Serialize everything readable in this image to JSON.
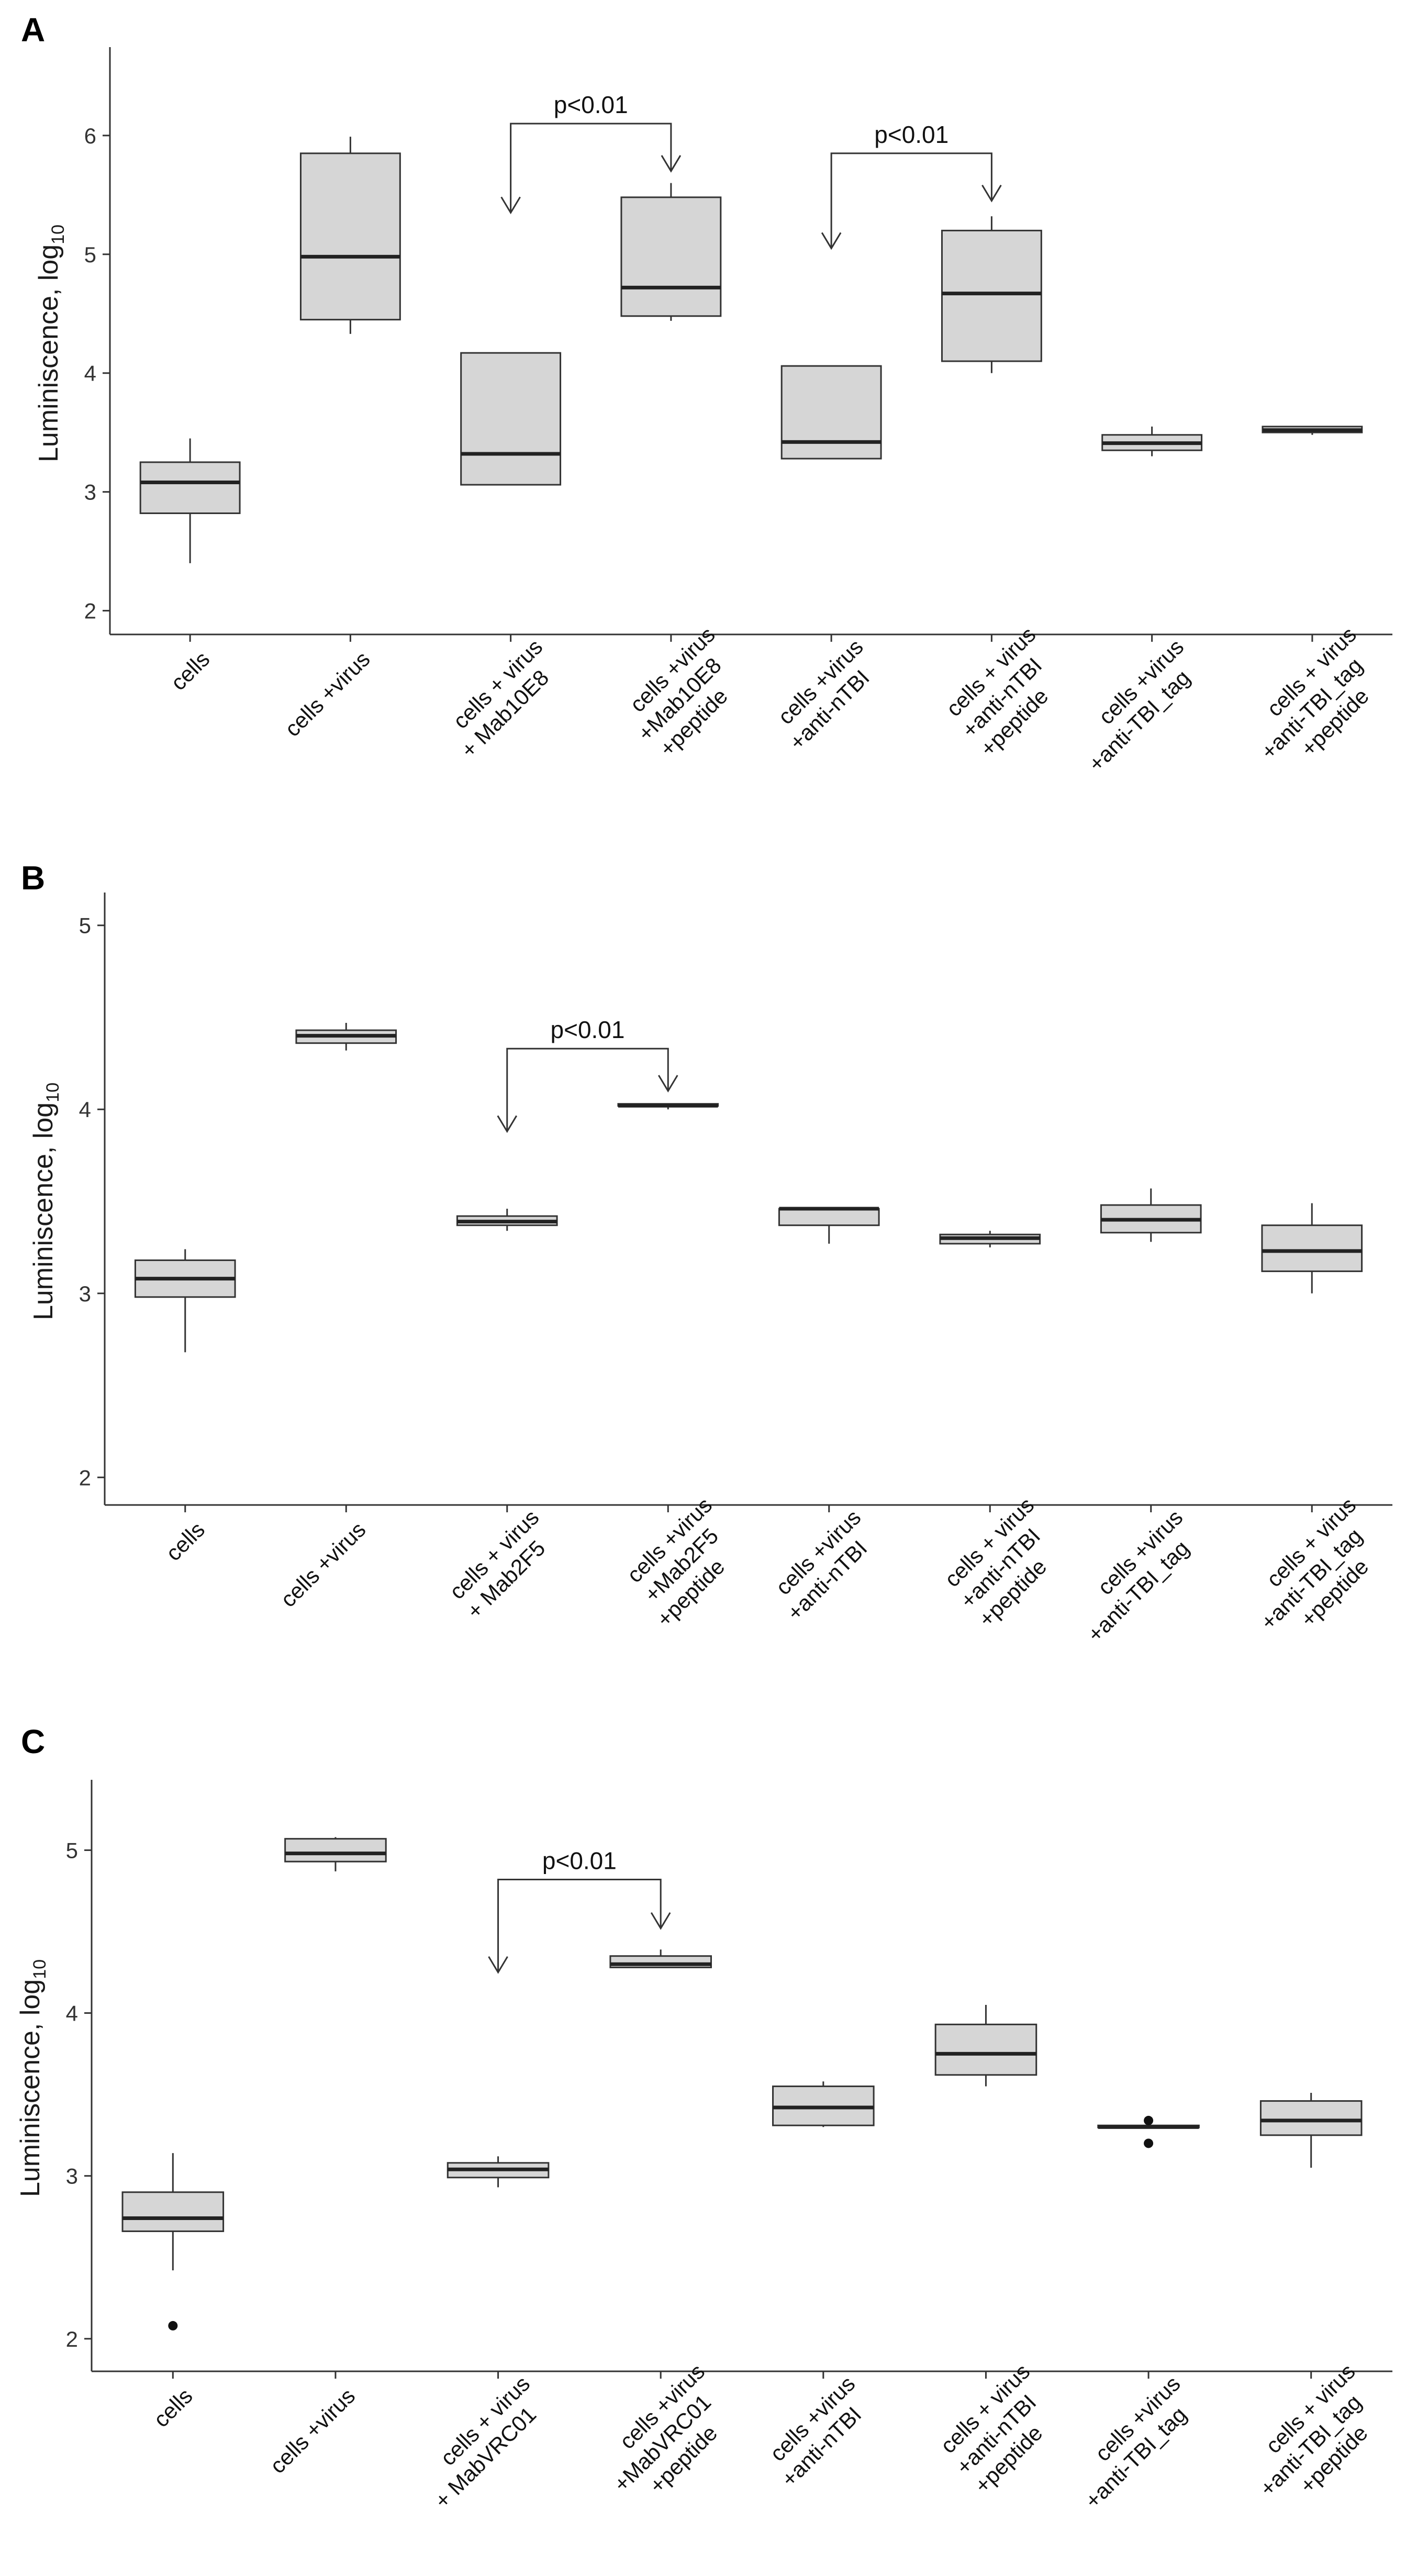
{
  "chart_data": [
    {
      "panel": "A",
      "type": "box",
      "ylabel_main": "Luminiscence, log",
      "ylabel_sub": "10",
      "ylim": [
        1.8,
        6.7
      ],
      "yticks": [
        2,
        3,
        4,
        5,
        6
      ],
      "categories": [
        [
          "cells"
        ],
        [
          "cells +virus"
        ],
        [
          "cells + virus",
          "+ Mab10E8"
        ],
        [
          "cells +virus",
          "+Mab10E8",
          "+peptide"
        ],
        [
          "cells +virus",
          "+anti-nTBI"
        ],
        [
          "cells + virus",
          "+anti-nTBI",
          "+peptide"
        ],
        [
          "cells +virus",
          "+anti-TBI_tag"
        ],
        [
          "cells + virus",
          "+anti-TBI_tag",
          "+peptide"
        ]
      ],
      "boxes": [
        {
          "min": 2.4,
          "q1": 2.82,
          "median": 3.08,
          "q3": 3.25,
          "max": 3.45
        },
        {
          "min": 4.33,
          "q1": 4.45,
          "median": 4.98,
          "q3": 5.85,
          "max": 5.99
        },
        {
          "min": 3.06,
          "q1": 3.06,
          "median": 3.32,
          "q3": 4.17,
          "max": 4.17
        },
        {
          "min": 4.44,
          "q1": 4.48,
          "median": 4.72,
          "q3": 5.48,
          "max": 5.6
        },
        {
          "min": 3.28,
          "q1": 3.28,
          "median": 3.42,
          "q3": 4.06,
          "max": 4.06
        },
        {
          "min": 4.0,
          "q1": 4.1,
          "median": 4.67,
          "q3": 5.2,
          "max": 5.32
        },
        {
          "min": 3.3,
          "q1": 3.35,
          "median": 3.41,
          "q3": 3.48,
          "max": 3.55
        },
        {
          "min": 3.48,
          "q1": 3.5,
          "median": 3.52,
          "q3": 3.55,
          "max": 3.55
        }
      ],
      "outliers": [],
      "annotations": [
        {
          "text": "p<0.01",
          "from": 2,
          "to": 3,
          "left_arrow_y": 5.35,
          "right_arrow_y": 5.7,
          "top_y": 6.1
        },
        {
          "text": "p<0.01",
          "from": 4,
          "to": 5,
          "left_arrow_y": 5.05,
          "right_arrow_y": 5.45,
          "top_y": 5.85
        }
      ]
    },
    {
      "panel": "B",
      "type": "box",
      "ylabel_main": "Luminiscence, log",
      "ylabel_sub": "10",
      "ylim": [
        1.85,
        5.15
      ],
      "yticks": [
        2,
        3,
        4,
        5
      ],
      "categories": [
        [
          "cells"
        ],
        [
          "cells +virus"
        ],
        [
          "cells + virus",
          "+ Mab2F5"
        ],
        [
          "cells +virus",
          "+Mab2F5",
          "+peptide"
        ],
        [
          "cells +virus",
          "+anti-nTBI"
        ],
        [
          "cells + virus",
          "+anti-nTBI",
          "+peptide"
        ],
        [
          "cells +virus",
          "+anti-TBI_tag"
        ],
        [
          "cells + virus",
          "+anti-TBI_tag",
          "+peptide"
        ]
      ],
      "boxes": [
        {
          "min": 2.68,
          "q1": 2.98,
          "median": 3.08,
          "q3": 3.18,
          "max": 3.24
        },
        {
          "min": 4.32,
          "q1": 4.36,
          "median": 4.4,
          "q3": 4.43,
          "max": 4.47
        },
        {
          "min": 3.34,
          "q1": 3.37,
          "median": 3.39,
          "q3": 3.42,
          "max": 3.46
        },
        {
          "min": 4.0,
          "q1": 4.02,
          "median": 4.02,
          "q3": 4.03,
          "max": 4.03
        },
        {
          "min": 3.27,
          "q1": 3.37,
          "median": 3.46,
          "q3": 3.46,
          "max": 3.46
        },
        {
          "min": 3.25,
          "q1": 3.27,
          "median": 3.3,
          "q3": 3.32,
          "max": 3.34
        },
        {
          "min": 3.28,
          "q1": 3.33,
          "median": 3.4,
          "q3": 3.48,
          "max": 3.57
        },
        {
          "min": 3.0,
          "q1": 3.12,
          "median": 3.23,
          "q3": 3.37,
          "max": 3.49
        }
      ],
      "outliers": [],
      "annotations": [
        {
          "text": "p<0.01",
          "from": 2,
          "to": 3,
          "left_arrow_y": 3.88,
          "right_arrow_y": 4.1,
          "top_y": 4.33
        }
      ]
    },
    {
      "panel": "C",
      "type": "box",
      "ylabel_main": "Luminiscence, log",
      "ylabel_sub": "10",
      "ylim": [
        1.8,
        5.4
      ],
      "yticks": [
        2,
        3,
        4,
        5
      ],
      "categories": [
        [
          "cells"
        ],
        [
          "cells +virus"
        ],
        [
          "cells + virus",
          "+ MabVRC01"
        ],
        [
          "cells +virus",
          "+MabVRC01",
          "+peptide"
        ],
        [
          "cells +virus",
          "+anti-nTBI"
        ],
        [
          "cells + virus",
          "+anti-nTBI",
          "+peptide"
        ],
        [
          "cells +virus",
          "+anti-TBI_tag"
        ],
        [
          "cells + virus",
          "+anti-TBI_tag",
          "+peptide"
        ]
      ],
      "boxes": [
        {
          "min": 2.42,
          "q1": 2.66,
          "median": 2.74,
          "q3": 2.9,
          "max": 3.14
        },
        {
          "min": 4.87,
          "q1": 4.93,
          "median": 4.98,
          "q3": 5.07,
          "max": 5.08
        },
        {
          "min": 2.93,
          "q1": 2.99,
          "median": 3.04,
          "q3": 3.08,
          "max": 3.12
        },
        {
          "min": 4.28,
          "q1": 4.28,
          "median": 4.3,
          "q3": 4.35,
          "max": 4.39
        },
        {
          "min": 3.3,
          "q1": 3.31,
          "median": 3.42,
          "q3": 3.55,
          "max": 3.58
        },
        {
          "min": 3.55,
          "q1": 3.62,
          "median": 3.75,
          "q3": 3.93,
          "max": 4.05
        },
        {
          "min": 3.3,
          "q1": 3.3,
          "median": 3.3,
          "q3": 3.31,
          "max": 3.31
        },
        {
          "min": 3.05,
          "q1": 3.25,
          "median": 3.34,
          "q3": 3.46,
          "max": 3.51
        }
      ],
      "outliers": [
        {
          "cat": 0,
          "y": 2.08
        },
        {
          "cat": 6,
          "y": 3.34
        },
        {
          "cat": 6,
          "y": 3.2
        }
      ],
      "annotations": [
        {
          "text": "p<0.01",
          "from": 2,
          "to": 3,
          "left_arrow_y": 4.25,
          "right_arrow_y": 4.52,
          "top_y": 4.82
        }
      ]
    }
  ]
}
